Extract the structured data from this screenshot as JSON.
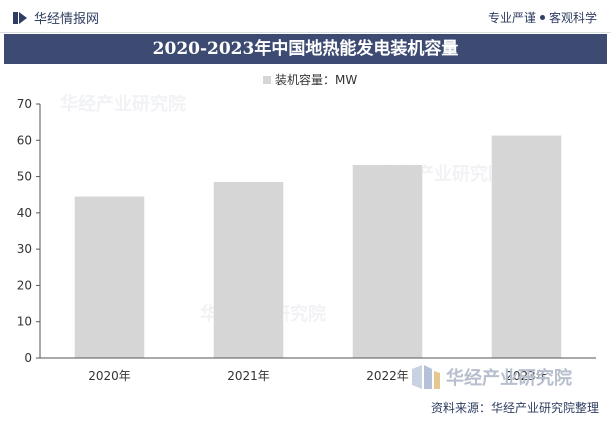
{
  "header": {
    "brand": "华经情报网",
    "slogan_left": "专业严谨",
    "slogan_right": "客观科学"
  },
  "chart_data": {
    "type": "bar",
    "title": "2020-2023年中国地热能发电装机容量",
    "categories": [
      "2020年",
      "2021年",
      "2022年",
      "2023年"
    ],
    "series": [
      {
        "name": "装机容量：MW",
        "values": [
          44.5,
          48.5,
          53.2,
          61.3
        ]
      }
    ],
    "ylim": [
      0,
      70
    ],
    "yticks": [
      0,
      10,
      20,
      30,
      40,
      50,
      60,
      70
    ],
    "xlabel": "",
    "ylabel": "",
    "grid": false,
    "legend_position": "top-center",
    "bar_color": "#d6d6d6"
  },
  "watermark": {
    "brand": "华经产业研究院"
  },
  "footer": {
    "source": "资料来源：华经产业研究院整理"
  }
}
